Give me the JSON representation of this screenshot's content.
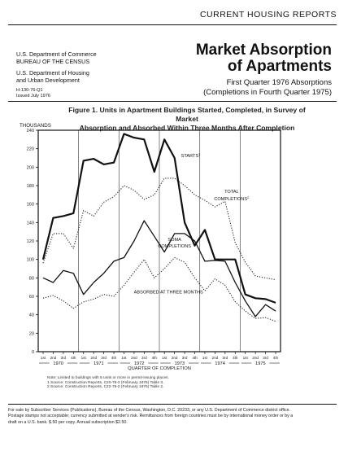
{
  "header": {
    "series_title": "CURRENT HOUSING REPORTS"
  },
  "agency": {
    "line1": "U.S. Department of Commerce",
    "line2": "BUREAU OF THE CENSUS",
    "line3": "U.S. Department of Housing",
    "line4": "and Urban Development",
    "report_no": "H-130-76-Q1",
    "issued": "Issued July 1976"
  },
  "report": {
    "title_line1": "Market Absorption",
    "title_line2": "of Apartments",
    "subtitle_line1": "First Quarter 1976 Absorptions",
    "subtitle_line2": "(Completions in Fourth Quarter 1975)"
  },
  "figure": {
    "title_line1": "Figure 1.  Units in Apartment Buildings Started, Completed, in Survey of Market",
    "title_line2": "Absorption and Absorbed Within Three Months After Completion",
    "units_label": "THOUSANDS",
    "notes": [
      "Note: Limited to buildings with 5 units or more in permit-issuing places.",
      "1 Source: Construction Reports, C20-76-2 (February 1976) Table 3.",
      "2 Source: Construction Reports, C22-76-2 (February 1976) Table 2."
    ]
  },
  "chart_data": {
    "type": "line",
    "title": "Units in Apartment Buildings Started, Completed, in Survey of Market Absorption and Absorbed Within Three Months After Completion",
    "xlabel": "QUARTER OF COMPLETION",
    "ylabel": "THOUSANDS",
    "ylim": [
      0,
      240
    ],
    "yticks": [
      0,
      20,
      40,
      60,
      80,
      100,
      120,
      140,
      160,
      180,
      200,
      220,
      240
    ],
    "quarter_labels": [
      "1st",
      "2nd",
      "3rd",
      "4th",
      "1st",
      "2nd",
      "3rd",
      "4th",
      "1st",
      "2nd",
      "3rd",
      "4th",
      "1st",
      "2nd",
      "3rd",
      "4th",
      "1st",
      "2nd",
      "3rd",
      "4th",
      "1st",
      "2nd",
      "3rd",
      "4th"
    ],
    "years": [
      {
        "label": "1970",
        "start": 0,
        "end": 3
      },
      {
        "label": "1971",
        "start": 4,
        "end": 7
      },
      {
        "label": "1972",
        "start": 8,
        "end": 11
      },
      {
        "label": "1973",
        "start": 12,
        "end": 15
      },
      {
        "label": "1974",
        "start": 16,
        "end": 19
      },
      {
        "label": "1975",
        "start": 20,
        "end": 23
      }
    ],
    "series": [
      {
        "name": "STARTS",
        "footnote": "1",
        "style": "solid-heavy",
        "values": [
          100,
          145,
          147,
          150,
          207,
          209,
          203,
          205,
          236,
          232,
          230,
          195,
          230,
          210,
          140,
          115,
          132,
          100,
          100,
          100,
          62,
          58,
          57,
          53
        ]
      },
      {
        "name": "TOTAL COMPLETIONS",
        "footnote": "2",
        "style": "dotted",
        "values": [
          96,
          128,
          128,
          112,
          153,
          147,
          162,
          168,
          180,
          175,
          165,
          170,
          188,
          188,
          180,
          170,
          164,
          157,
          163,
          118,
          97,
          82,
          80,
          78
        ]
      },
      {
        "name": "SOMA COMPLETIONS",
        "style": "solid",
        "values": [
          80,
          75,
          88,
          85,
          62,
          75,
          85,
          98,
          102,
          120,
          142,
          125,
          108,
          128,
          128,
          120,
          98,
          99,
          98,
          75,
          55,
          38,
          51,
          44
        ]
      },
      {
        "name": "ABSORBED AT THREE MONTHS",
        "style": "dotted",
        "values": [
          58,
          61,
          55,
          47,
          54,
          57,
          62,
          60,
          72,
          86,
          100,
          80,
          90,
          102,
          97,
          80,
          66,
          79,
          72,
          54,
          44,
          36,
          37,
          33
        ]
      }
    ],
    "series_labels": [
      "STARTS",
      "TOTAL",
      "COMPLETIONS",
      "SOMA",
      "COMPLETIONS",
      "ABSORBED AT THREE MONTHS"
    ]
  },
  "footer": {
    "line1": "For sale by Subscriber Services (Publications), Bureau of the Census, Washington, D.C. 20233, or any U.S. Department of Commerce district office.",
    "line2": "Postage stamps not acceptable; currency submitted at sender's risk. Remittances from foreign countries must be by international money order or by a",
    "line3": "draft on a U.S. bank. $.50 per copy. Annual subscription $2.50."
  }
}
